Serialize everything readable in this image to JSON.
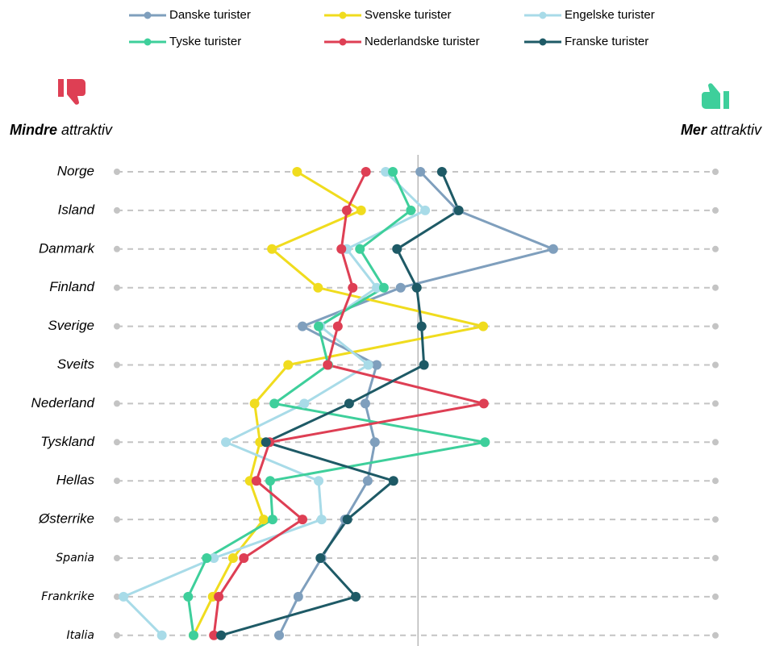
{
  "chart_data": {
    "type": "line",
    "orientation": "horizontal",
    "categories": [
      "Norge",
      "Island",
      "Danmark",
      "Finland",
      "Sverige",
      "Sveits",
      "Nederland",
      "Tyskland",
      "Hellas",
      "Østerrike",
      "Spania",
      "Frankrike",
      "Italia"
    ],
    "series": [
      {
        "name": "Danske turister",
        "color": "#7f9fbd",
        "values": [
          50.7,
          56.9,
          72.9,
          47.4,
          31.0,
          43.4,
          41.5,
          43.1,
          41.9,
          38.1,
          34.2,
          30.3,
          27.1
        ]
      },
      {
        "name": "Svenske turister",
        "color": "#f0dc1e",
        "values": [
          30.1,
          40.8,
          25.9,
          33.6,
          61.2,
          28.6,
          23.0,
          23.9,
          22.2,
          24.5,
          19.4,
          16.0,
          12.8
        ]
      },
      {
        "name": "Engelske turister",
        "color": "#a8dbe8",
        "values": [
          44.9,
          51.5,
          38.4,
          43.4,
          34.0,
          42.0,
          31.3,
          18.2,
          33.7,
          34.2,
          16.2,
          1.1,
          7.5
        ]
      },
      {
        "name": "Tyske turister",
        "color": "#3ecf9b",
        "values": [
          46.1,
          49.1,
          40.6,
          44.6,
          33.7,
          35.3,
          26.3,
          61.5,
          25.6,
          26.0,
          15.0,
          11.9,
          12.8
        ]
      },
      {
        "name": "Nederlandske turister",
        "color": "#de3f54",
        "values": [
          41.6,
          38.4,
          37.5,
          39.4,
          36.9,
          35.2,
          61.3,
          25.5,
          23.3,
          31.0,
          21.2,
          17.0,
          16.2
        ]
      },
      {
        "name": "Franske turister",
        "color": "#1e5a66",
        "values": [
          54.3,
          57.1,
          46.8,
          50.1,
          50.9,
          51.3,
          38.8,
          24.9,
          46.2,
          38.5,
          34.0,
          39.9,
          17.4
        ]
      }
    ],
    "xlim": [
      0,
      100
    ],
    "reference_line": 50.3,
    "left_label": [
      "Mindre",
      "attraktiv"
    ],
    "right_label": [
      "Mer",
      "attraktiv"
    ]
  }
}
